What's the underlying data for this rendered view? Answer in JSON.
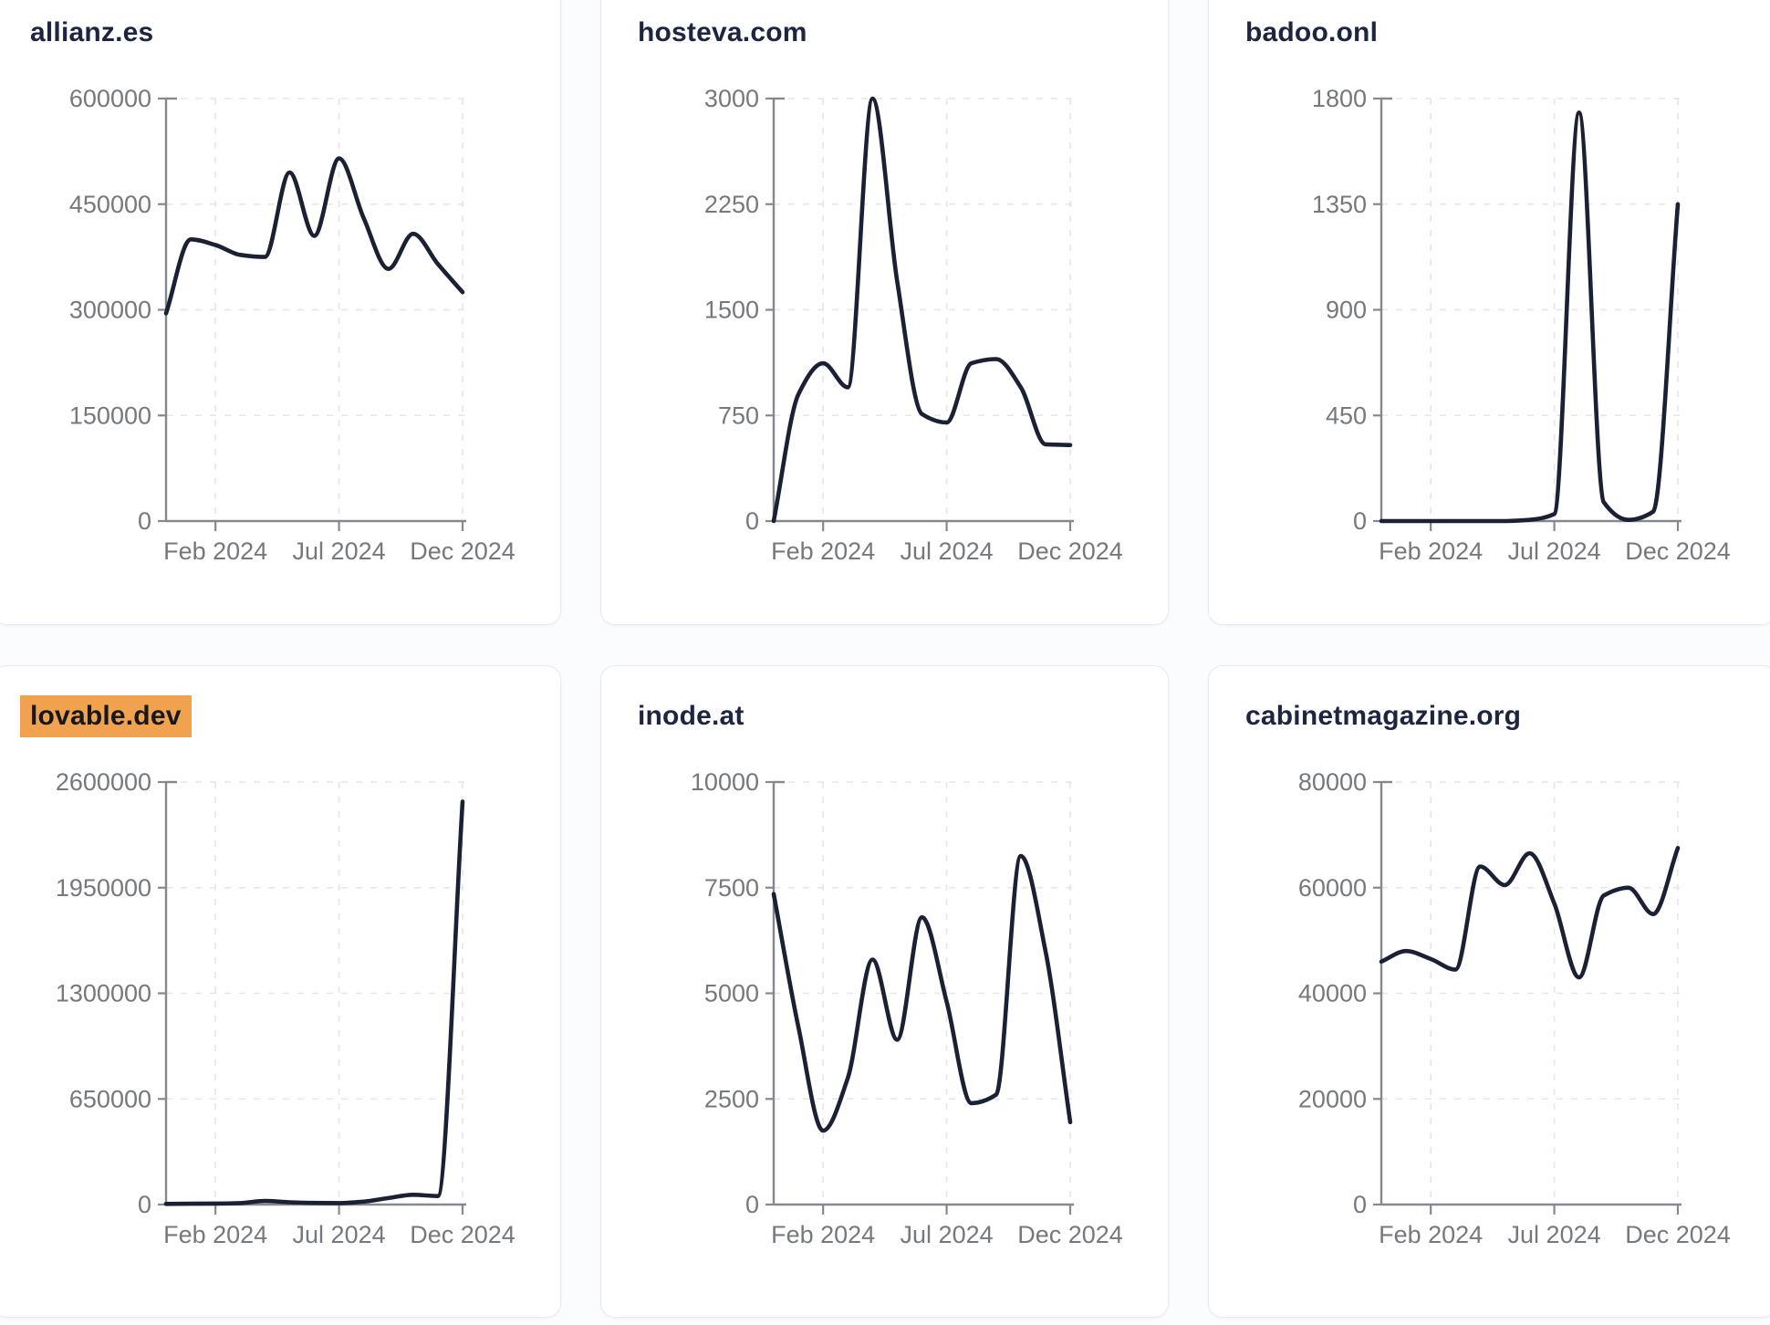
{
  "colors": {
    "line": "#1b2135",
    "title": "#1d2540",
    "axis": "#85898f",
    "tick_label": "#75787d",
    "gridline": "#e4e6ea",
    "card_background": "#ffffff",
    "card_border": "#e7ebf1",
    "page_background": "#fbfcfd",
    "highlight": "#f0a24e"
  },
  "x_axis": {
    "tick_labels": [
      "Feb 2024",
      "Jul 2024",
      "Dec 2024"
    ],
    "tick_month_indices": [
      2,
      7,
      12
    ]
  },
  "chart_data": [
    {
      "type": "line",
      "title": "allianz.es",
      "highlight": false,
      "x": [
        "Dec 2023",
        "Jan 2024",
        "Feb 2024",
        "Mar 2024",
        "Apr 2024",
        "May 2024",
        "Jun 2024",
        "Jul 2024",
        "Aug 2024",
        "Sep 2024",
        "Oct 2024",
        "Nov 2024",
        "Dec 2024"
      ],
      "values": [
        295000,
        400000,
        392000,
        378000,
        375000,
        495000,
        405000,
        515000,
        430000,
        358000,
        408000,
        365000,
        325000
      ],
      "y_ticks": [
        0,
        150000,
        300000,
        450000,
        600000
      ],
      "ylim": [
        0,
        600000
      ],
      "x_tick_labels": [
        "Feb 2024",
        "Jul 2024",
        "Dec 2024"
      ],
      "grid": true,
      "legend": "none"
    },
    {
      "type": "line",
      "title": "hosteva.com",
      "highlight": false,
      "x": [
        "Dec 2023",
        "Jan 2024",
        "Feb 2024",
        "Mar 2024",
        "Apr 2024",
        "May 2024",
        "Jun 2024",
        "Jul 2024",
        "Aug 2024",
        "Sep 2024",
        "Oct 2024",
        "Nov 2024",
        "Dec 2024"
      ],
      "values": [
        0,
        900,
        1120,
        950,
        3000,
        1700,
        760,
        700,
        1120,
        1150,
        950,
        545,
        540
      ],
      "y_ticks": [
        0,
        750,
        1500,
        2250,
        3000
      ],
      "ylim": [
        0,
        3000
      ],
      "x_tick_labels": [
        "Feb 2024",
        "Jul 2024",
        "Dec 2024"
      ],
      "grid": true,
      "legend": "none"
    },
    {
      "type": "line",
      "title": "badoo.onl",
      "highlight": false,
      "x": [
        "Dec 2023",
        "Jan 2024",
        "Feb 2024",
        "Mar 2024",
        "Apr 2024",
        "May 2024",
        "Jun 2024",
        "Jul 2024",
        "Aug 2024",
        "Sep 2024",
        "Oct 2024",
        "Nov 2024",
        "Dec 2024"
      ],
      "values": [
        0,
        0,
        0,
        0,
        0,
        0,
        5,
        30,
        1740,
        80,
        5,
        40,
        1350
      ],
      "y_ticks": [
        0,
        450,
        900,
        1350,
        1800
      ],
      "ylim": [
        0,
        1800
      ],
      "x_tick_labels": [
        "Feb 2024",
        "Jul 2024",
        "Dec 2024"
      ],
      "grid": true,
      "legend": "none"
    },
    {
      "type": "line",
      "title": "lovable.dev",
      "highlight": true,
      "x": [
        "Dec 2023",
        "Jan 2024",
        "Feb 2024",
        "Mar 2024",
        "Apr 2024",
        "May 2024",
        "Jun 2024",
        "Jul 2024",
        "Aug 2024",
        "Sep 2024",
        "Oct 2024",
        "Nov 2024",
        "Dec 2024"
      ],
      "values": [
        4000,
        5000,
        6000,
        9000,
        22000,
        14000,
        10000,
        9000,
        18000,
        40000,
        60000,
        52000,
        2480000
      ],
      "y_ticks": [
        0,
        650000,
        1300000,
        1950000,
        2600000
      ],
      "ylim": [
        0,
        2600000
      ],
      "x_tick_labels": [
        "Feb 2024",
        "Jul 2024",
        "Dec 2024"
      ],
      "grid": true,
      "legend": "none"
    },
    {
      "type": "line",
      "title": "inode.at",
      "highlight": false,
      "x": [
        "Dec 2023",
        "Jan 2024",
        "Feb 2024",
        "Mar 2024",
        "Apr 2024",
        "May 2024",
        "Jun 2024",
        "Jul 2024",
        "Aug 2024",
        "Sep 2024",
        "Oct 2024",
        "Nov 2024",
        "Dec 2024"
      ],
      "values": [
        7350,
        4200,
        1750,
        3000,
        5800,
        3900,
        6800,
        4800,
        2400,
        2600,
        8250,
        6000,
        1950
      ],
      "y_ticks": [
        0,
        2500,
        5000,
        7500,
        10000
      ],
      "ylim": [
        0,
        10000
      ],
      "x_tick_labels": [
        "Feb 2024",
        "Jul 2024",
        "Dec 2024"
      ],
      "grid": true,
      "legend": "none"
    },
    {
      "type": "line",
      "title": "cabinetmagazine.org",
      "highlight": false,
      "x": [
        "Dec 2023",
        "Jan 2024",
        "Feb 2024",
        "Mar 2024",
        "Apr 2024",
        "May 2024",
        "Jun 2024",
        "Jul 2024",
        "Aug 2024",
        "Sep 2024",
        "Oct 2024",
        "Nov 2024",
        "Dec 2024"
      ],
      "values": [
        46000,
        48000,
        46500,
        44500,
        64000,
        60500,
        66500,
        57000,
        43000,
        58500,
        60000,
        55000,
        67500
      ],
      "y_ticks": [
        0,
        20000,
        40000,
        60000,
        80000
      ],
      "ylim": [
        0,
        80000
      ],
      "x_tick_labels": [
        "Feb 2024",
        "Jul 2024",
        "Dec 2024"
      ],
      "grid": true,
      "legend": "none"
    }
  ]
}
